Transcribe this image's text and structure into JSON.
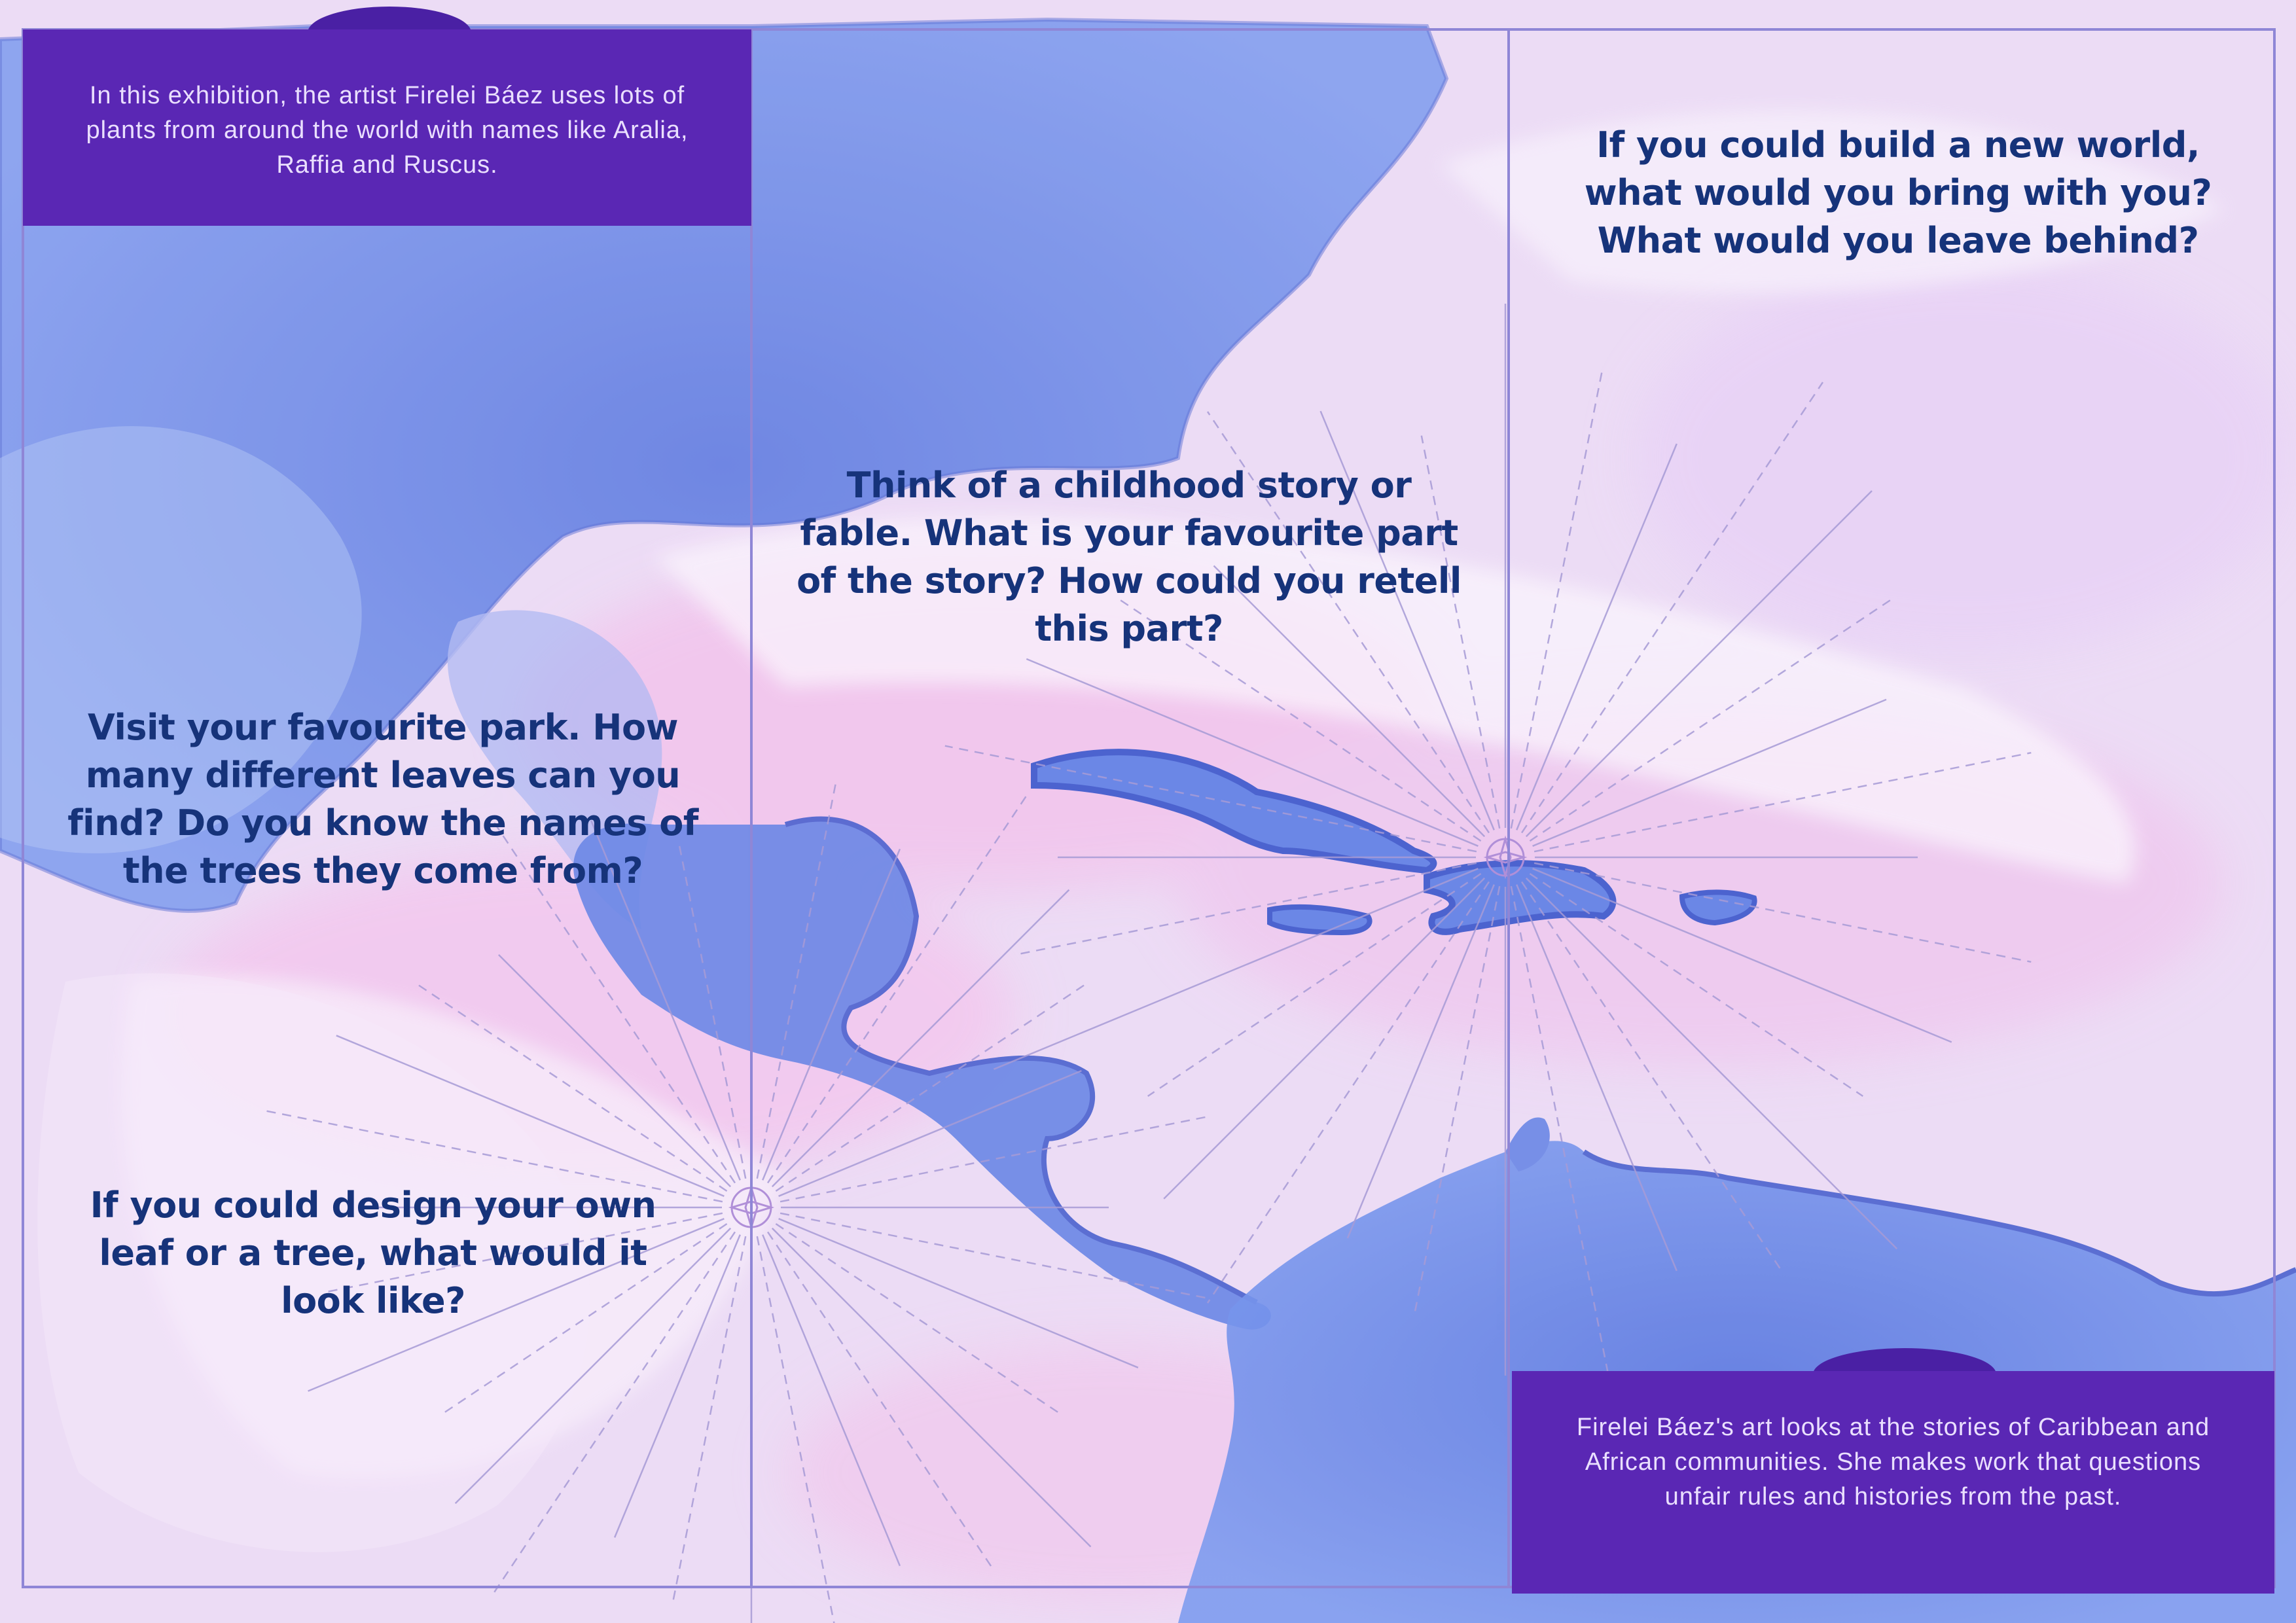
{
  "artwork": {
    "background": "#ecdcf5",
    "water_pink": "#f0c6ec",
    "land_blue": "#6b87e6",
    "land_blue_dark": "#4c63cf",
    "frame_color": "#8f86d6",
    "prompt_color": "#16337a",
    "box_color": "#5a27b4",
    "box_text_color": "#eadfff",
    "compass_line_color": "#a79bd6"
  },
  "intro": {
    "text": "In this exhibition, the artist Firelei Báez uses lots of plants from around the world with names like Aralia, Raffia and Ruscus."
  },
  "about": {
    "text": "Firelei Báez's art looks at the stories of Caribbean and African communities. She makes work that questions unfair rules and histories from the past."
  },
  "prompts": {
    "new_world": "If you could build a new world, what would you bring with you? What would you leave behind?",
    "childhood_story": "Think of a childhood story or fable. What is your favourite part of the story? How could you retell this part?",
    "park": "Visit your favourite park. How many different leaves can you find? Do you know the names of the trees they come from?",
    "design_leaf": "If you could design your own leaf or a tree, what would it look like?"
  }
}
